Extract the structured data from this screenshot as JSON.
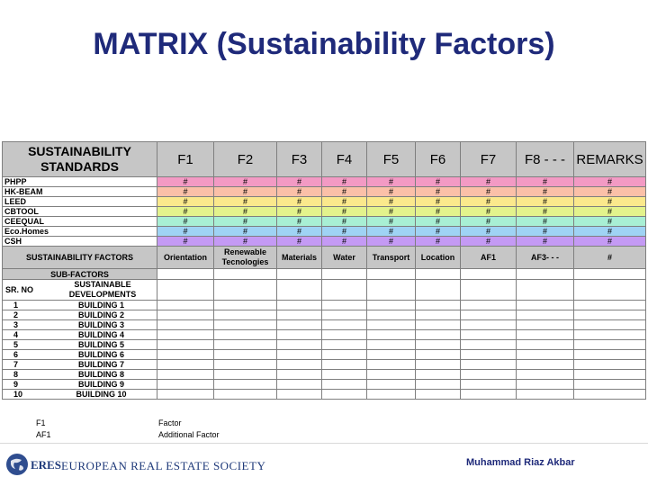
{
  "title": "MATRIX (Sustainability Factors)",
  "table": {
    "header": {
      "corner": "SUSTAINABILITY STANDARDS",
      "columns": [
        "F1",
        "F2",
        "F3",
        "F4",
        "F5",
        "F6",
        "F7",
        "F8 - - -",
        "REMARKS"
      ]
    },
    "standards": [
      {
        "name": "PHPP",
        "cells": [
          "#",
          "#",
          "#",
          "#",
          "#",
          "#",
          "#",
          "#",
          "#"
        ]
      },
      {
        "name": "HK-BEAM",
        "cells": [
          "#",
          "#",
          "#",
          "#",
          "#",
          "#",
          "#",
          "#",
          "#"
        ]
      },
      {
        "name": "LEED",
        "cells": [
          "#",
          "#",
          "#",
          "#",
          "#",
          "#",
          "#",
          "#",
          "#"
        ]
      },
      {
        "name": "CBTOOL",
        "cells": [
          "#",
          "#",
          "#",
          "#",
          "#",
          "#",
          "#",
          "#",
          "#"
        ]
      },
      {
        "name": "CEEQUAL",
        "cells": [
          "#",
          "#",
          "#",
          "#",
          "#",
          "#",
          "#",
          "#",
          "#"
        ]
      },
      {
        "name": "Eco.Homes",
        "cells": [
          "#",
          "#",
          "#",
          "#",
          "#",
          "#",
          "#",
          "#",
          "#"
        ]
      },
      {
        "name": "CSH",
        "cells": [
          "#",
          "#",
          "#",
          "#",
          "#",
          "#",
          "#",
          "#",
          "#"
        ]
      }
    ],
    "factors": {
      "label": "SUSTAINABILITY FACTORS",
      "values": [
        "Orientation",
        "Renewable Tecnologies",
        "Materials",
        "Water",
        "Transport",
        "Location",
        "AF1",
        "AF3- - -",
        "#"
      ]
    },
    "subfactors_label": "SUB-FACTORS",
    "developments": {
      "srno_label": "SR. NO",
      "label": "SUSTAINABLE DEVELOPMENTS"
    },
    "buildings": [
      {
        "n": "1",
        "name": "BUILDING 1"
      },
      {
        "n": "2",
        "name": "BUILDING 2"
      },
      {
        "n": "3",
        "name": "BUILDING 3"
      },
      {
        "n": "4",
        "name": "BUILDING 4"
      },
      {
        "n": "5",
        "name": "BUILDING 5"
      },
      {
        "n": "6",
        "name": "BUILDING 6"
      },
      {
        "n": "7",
        "name": "BUILDING 7"
      },
      {
        "n": "8",
        "name": "BUILDING 8"
      },
      {
        "n": "9",
        "name": "BUILDING 9"
      },
      {
        "n": "10",
        "name": "BUILDING 10"
      }
    ]
  },
  "legend": [
    {
      "key": "F1",
      "value": "Factor"
    },
    {
      "key": "AF1",
      "value": "Additional Factor"
    }
  ],
  "footer": {
    "logo_text": "ERES",
    "society": "EUROPEAN REAL ESTATE SOCIETY",
    "author": "Muhammad Riaz Akbar"
  },
  "colors": {
    "title": "#1f2a7a",
    "header_bg": "#c6c6c6",
    "row_colors": [
      "#f39ac4",
      "#fbc0a8",
      "#fbe98c",
      "#e3f38c",
      "#a8efd4",
      "#9fd3f4",
      "#c49af4"
    ]
  }
}
